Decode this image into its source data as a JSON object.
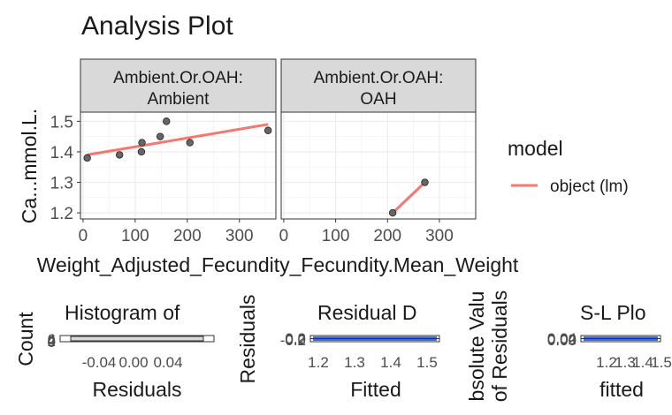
{
  "chart_data": [
    {
      "type": "scatter",
      "title": "Analysis Plot",
      "ylabel": "Ca...mmol.L.",
      "xlabel": "Weight_Adjusted_Fecundity_Fecundity.Mean_Weight",
      "xlim": [
        -5,
        370
      ],
      "ylim": [
        1.18,
        1.53
      ],
      "xticks": [
        0,
        100,
        200,
        300
      ],
      "yticks": [
        1.2,
        1.3,
        1.4,
        1.5
      ],
      "grid": true,
      "legend": {
        "title": "model",
        "entries": [
          "object (lm)"
        ],
        "position": "right",
        "color": "#f8766d"
      },
      "facets": [
        {
          "strip": [
            "Ambient.Or.OAH:",
            "Ambient"
          ],
          "points": [
            [
              8,
              1.38
            ],
            [
              70,
              1.39
            ],
            [
              112,
              1.4
            ],
            [
              113,
              1.43
            ],
            [
              148,
              1.45
            ],
            [
              160,
              1.5
            ],
            [
              205,
              1.43
            ],
            [
              355,
              1.47
            ]
          ],
          "fit": [
            [
              8,
              1.39
            ],
            [
              355,
              1.49
            ]
          ]
        },
        {
          "strip": [
            "Ambient.Or.OAH:",
            "OAH"
          ],
          "points": [
            [
              210,
              1.2
            ],
            [
              272,
              1.3
            ]
          ],
          "fit": [
            [
              210,
              1.2
            ],
            [
              272,
              1.3
            ]
          ]
        }
      ]
    },
    {
      "type": "bar",
      "title": "Histogram of",
      "xlabel": "Residuals",
      "ylabel": "Count",
      "xticks": [
        "-0.04",
        "0.00",
        "0.04"
      ],
      "yticks": [
        "0",
        "2",
        "4",
        "6"
      ]
    },
    {
      "type": "scatter",
      "title": "Residual D",
      "xlabel": "Fitted",
      "ylabel": "Residuals",
      "xticks": [
        "1.2",
        "1.3",
        "1.4",
        "1.5"
      ],
      "yticks": [
        "-0.2",
        "0.0",
        "0.2"
      ]
    },
    {
      "type": "scatter",
      "title": "S-L Plo",
      "xlabel": "fitted",
      "ylabel": [
        "bsolute Valu",
        "of Residuals"
      ],
      "xticks": [
        "1.2",
        "1.3",
        "1.4",
        "1.5"
      ],
      "yticks": [
        "0.00",
        "0.02",
        "0.04"
      ]
    }
  ]
}
